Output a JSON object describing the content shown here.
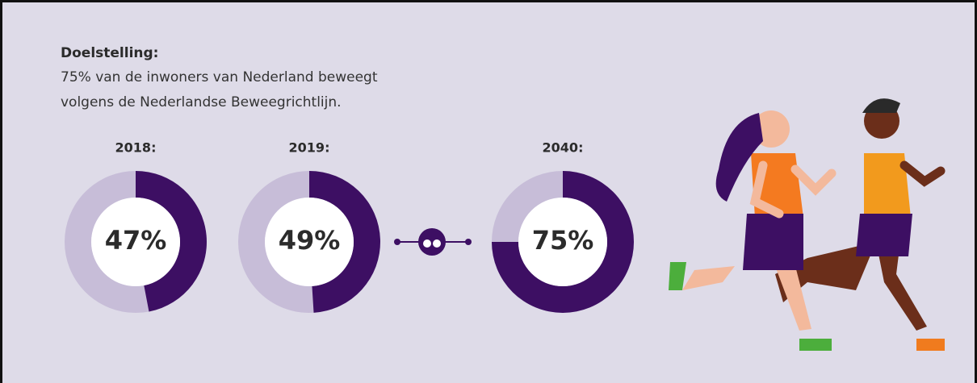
{
  "header": {
    "title": "Doelstelling:",
    "lines": [
      "75% van de inwoners van Nederland beweegt",
      "volgens de Nederlandse Beweegrichtlijn."
    ]
  },
  "chart_data": [
    {
      "type": "donut",
      "title": "2018:",
      "values": [
        47
      ],
      "value_labels": [
        "47%"
      ],
      "color": "#3d0f63",
      "track_color": "#c7bdd8"
    },
    {
      "type": "donut",
      "title": "2019:",
      "values": [
        49
      ],
      "value_labels": [
        "49%"
      ],
      "color": "#3d0f63",
      "track_color": "#c7bdd8"
    },
    {
      "type": "donut",
      "title": "2040:",
      "values": [
        75
      ],
      "value_labels": [
        "75%"
      ],
      "color": "#3d0f63",
      "track_color": "#c7bdd8"
    }
  ]
}
